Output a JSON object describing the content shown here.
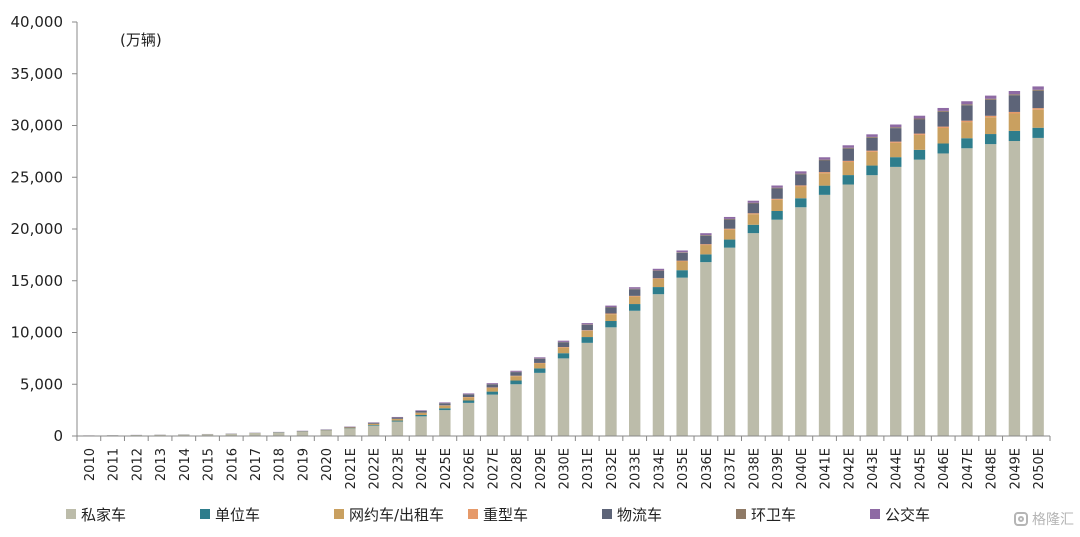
{
  "chart_data": {
    "type": "bar",
    "stacked": true,
    "unit_label": "(万辆)",
    "ylim": [
      0,
      40000
    ],
    "yticks": [
      "0",
      "5,000",
      "10,000",
      "15,000",
      "20,000",
      "25,000",
      "30,000",
      "35,000",
      "40,000"
    ],
    "grid": false,
    "legend_position": "bottom",
    "categories": [
      "2010",
      "2011",
      "2012",
      "2013",
      "2014",
      "2015",
      "2016",
      "2017",
      "2018",
      "2019",
      "2020",
      "2021E",
      "2022E",
      "2023E",
      "2024E",
      "2025E",
      "2026E",
      "2027E",
      "2028E",
      "2029E",
      "2030E",
      "2031E",
      "2032E",
      "2033E",
      "2034E",
      "2035E",
      "2036E",
      "2037E",
      "2038E",
      "2039E",
      "2040E",
      "2041E",
      "2042E",
      "2043E",
      "2044E",
      "2045E",
      "2046E",
      "2047E",
      "2048E",
      "2049E",
      "2050E"
    ],
    "series": [
      {
        "name": "私家车",
        "color": "#bcbcaa",
        "values": [
          50,
          70,
          90,
          110,
          130,
          160,
          200,
          260,
          320,
          400,
          500,
          700,
          1000,
          1400,
          1900,
          2500,
          3200,
          4000,
          5000,
          6100,
          7500,
          9000,
          10500,
          12100,
          13700,
          15300,
          16800,
          18200,
          19600,
          20900,
          22100,
          23300,
          24300,
          25200,
          26000,
          26700,
          27300,
          27800,
          28200,
          28500,
          28800
        ]
      },
      {
        "name": "单位车",
        "color": "#2e7d8c",
        "values": [
          2,
          3,
          4,
          5,
          6,
          8,
          10,
          12,
          15,
          20,
          25,
          40,
          60,
          90,
          130,
          180,
          230,
          290,
          360,
          430,
          500,
          560,
          610,
          650,
          690,
          720,
          750,
          780,
          810,
          840,
          870,
          890,
          910,
          930,
          940,
          950,
          960,
          970,
          975,
          980,
          985
        ]
      },
      {
        "name": "网约车/出租车",
        "color": "#c9a060",
        "values": [
          2,
          3,
          4,
          5,
          6,
          8,
          10,
          15,
          20,
          30,
          40,
          70,
          110,
          150,
          200,
          250,
          300,
          360,
          420,
          480,
          540,
          600,
          660,
          720,
          780,
          840,
          900,
          960,
          1020,
          1080,
          1140,
          1200,
          1260,
          1320,
          1380,
          1440,
          1500,
          1560,
          1620,
          1680,
          1740
        ]
      },
      {
        "name": "重型车",
        "color": "#e69a6a",
        "values": [
          0,
          0,
          0,
          0,
          1,
          1,
          1,
          2,
          3,
          5,
          6,
          10,
          15,
          20,
          25,
          30,
          35,
          40,
          45,
          50,
          55,
          60,
          65,
          70,
          75,
          80,
          85,
          90,
          95,
          100,
          105,
          110,
          115,
          120,
          125,
          130,
          135,
          140,
          145,
          150,
          155
        ]
      },
      {
        "name": "物流车",
        "color": "#5d6478",
        "values": [
          2,
          3,
          4,
          5,
          6,
          8,
          10,
          15,
          20,
          30,
          40,
          60,
          90,
          120,
          160,
          200,
          250,
          300,
          350,
          400,
          460,
          520,
          580,
          640,
          700,
          760,
          820,
          880,
          940,
          1000,
          1060,
          1120,
          1180,
          1240,
          1300,
          1360,
          1420,
          1480,
          1540,
          1600,
          1660
        ]
      },
      {
        "name": "环卫车",
        "color": "#8f7a66",
        "values": [
          0,
          0,
          0,
          0,
          0,
          1,
          1,
          1,
          2,
          3,
          4,
          6,
          8,
          10,
          13,
          16,
          20,
          24,
          28,
          32,
          36,
          40,
          44,
          48,
          52,
          56,
          60,
          64,
          68,
          72,
          76,
          80,
          84,
          88,
          92,
          96,
          100,
          104,
          108,
          112,
          116
        ]
      },
      {
        "name": "公交车",
        "color": "#8e6aa4",
        "values": [
          5,
          6,
          7,
          8,
          9,
          10,
          12,
          14,
          16,
          18,
          20,
          30,
          40,
          50,
          60,
          70,
          80,
          90,
          100,
          110,
          120,
          130,
          140,
          150,
          160,
          170,
          180,
          190,
          200,
          210,
          220,
          230,
          240,
          250,
          260,
          270,
          280,
          290,
          300,
          310,
          320
        ]
      }
    ]
  },
  "watermark": {
    "text": "格隆汇"
  }
}
